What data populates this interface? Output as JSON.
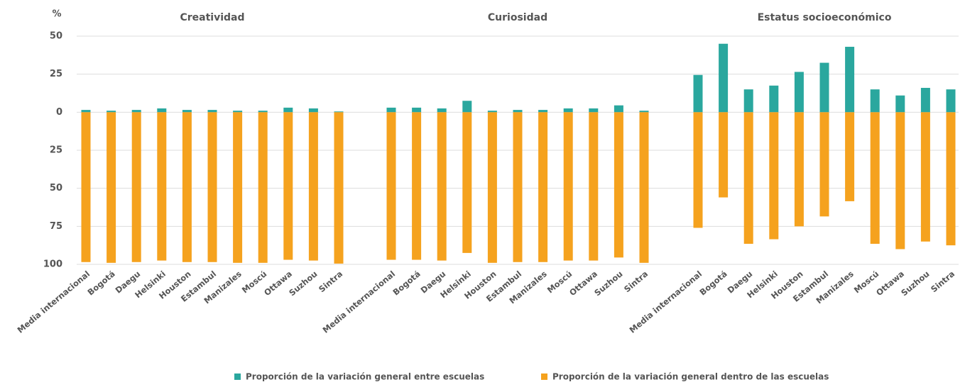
{
  "chart_data": {
    "type": "bar",
    "y_label": "%",
    "ylim": [
      -100,
      50
    ],
    "yticks": [
      {
        "value": -100,
        "label": "100"
      },
      {
        "value": -75,
        "label": "75"
      },
      {
        "value": -50,
        "label": "50"
      },
      {
        "value": -25,
        "label": "25"
      },
      0,
      25,
      50
    ],
    "grid": true,
    "series": [
      {
        "name": "Proporción de la variación general entre escuelas",
        "color": "#2aa79e"
      },
      {
        "name": "Proporción de la variación general dentro de las escuelas",
        "color": "#f5a21e"
      }
    ],
    "panels": [
      {
        "title": "Creatividad",
        "categories": [
          "Media internacional",
          "Bogotá",
          "Daegu",
          "Helsinki",
          "Houston",
          "Estambul",
          "Manizales",
          "Moscú",
          "Ottawa",
          "Suzhou",
          "Sintra"
        ],
        "series": [
          {
            "values": [
              1.5,
              1,
              1.5,
              2.5,
              1.5,
              1.5,
              1,
              1,
              3,
              2.5,
              0.5
            ]
          },
          {
            "values": [
              -98.5,
              -99,
              -98.5,
              -97.5,
              -98.5,
              -98.5,
              -99,
              -99,
              -97,
              -97.5,
              -99.5
            ]
          }
        ]
      },
      {
        "title": "Curiosidad",
        "categories": [
          "Media internacional",
          "Bogotá",
          "Daegu",
          "Helsinki",
          "Houston",
          "Estambul",
          "Manizales",
          "Moscú",
          "Ottawa",
          "Suzhou",
          "Sintra"
        ],
        "series": [
          {
            "values": [
              3,
              3,
              2.5,
              7.5,
              1,
              1.5,
              1.5,
              2.5,
              2.5,
              4.5,
              1
            ]
          },
          {
            "values": [
              -97,
              -97,
              -97.5,
              -92.5,
              -99,
              -98.5,
              -98.5,
              -97.5,
              -97.5,
              -95.5,
              -99
            ]
          }
        ]
      },
      {
        "title": "Estatus socioeconómico",
        "categories": [
          "Media internacional",
          "Bogotá",
          "Daegu",
          "Helsinki",
          "Houston",
          "Estambul",
          "Manizales",
          "Moscú",
          "Ottawa",
          "Suzhou",
          "Sintra"
        ],
        "series": [
          {
            "values": [
              24.5,
              45,
              15,
              17.5,
              26.5,
              32.5,
              43,
              15,
              11,
              16,
              15
            ]
          },
          {
            "values": [
              -76,
              -56,
              -86.5,
              -83.5,
              -75,
              -68.5,
              -58.5,
              -86.5,
              -90,
              -85,
              -87.5
            ]
          }
        ]
      }
    ]
  }
}
